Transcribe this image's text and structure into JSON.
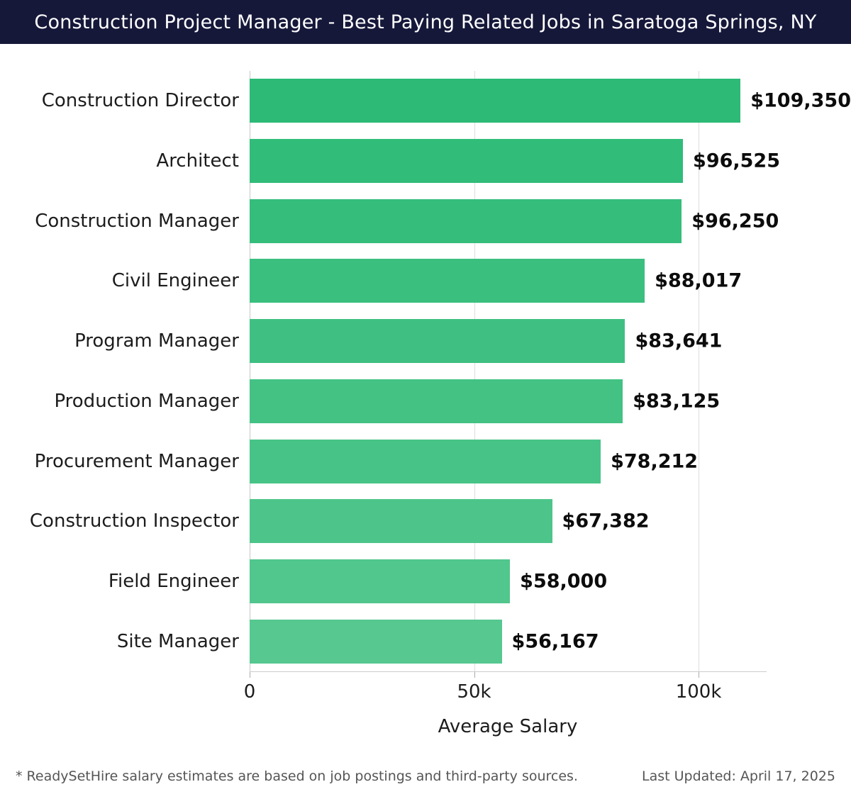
{
  "header": {
    "title": "Construction Project Manager - Best Paying Related Jobs in Saratoga Springs, NY"
  },
  "chart_data": {
    "type": "bar",
    "orientation": "horizontal",
    "title": "Construction Project Manager - Best Paying Related Jobs in Saratoga Springs, NY",
    "categories": [
      "Construction Director",
      "Architect",
      "Construction Manager",
      "Civil Engineer",
      "Program Manager",
      "Production Manager",
      "Procurement Manager",
      "Construction Inspector",
      "Field Engineer",
      "Site Manager"
    ],
    "values": [
      109350,
      96525,
      96250,
      88017,
      83641,
      83125,
      78212,
      67382,
      58000,
      56167
    ],
    "value_labels": [
      "$109,350",
      "$96,525",
      "$96,250",
      "$88,017",
      "$83,641",
      "$83,125",
      "$78,212",
      "$67,382",
      "$58,000",
      "$56,167"
    ],
    "xlabel": "Average Salary",
    "ylabel": "",
    "xlim": [
      0,
      115000
    ],
    "xticks": [
      {
        "value": 0,
        "label": "0"
      },
      {
        "value": 50000,
        "label": "50k"
      },
      {
        "value": 100000,
        "label": "100k"
      }
    ],
    "grid": "vertical",
    "legend": "none",
    "bar_color_start": "#2cba76",
    "bar_color_end": "#56c890"
  },
  "colors": {
    "header_bg": "#16183a",
    "header_text": "#ffffff",
    "gridline": "#dddddd",
    "axis_line": "#cccccc",
    "value_text": "#0c0c0c",
    "category_text": "#1c1c1c",
    "footer_text": "#555555"
  },
  "footer": {
    "note": "* ReadySetHire salary estimates are based on job postings and third-party sources.",
    "last_updated": "Last Updated: April 17, 2025"
  }
}
